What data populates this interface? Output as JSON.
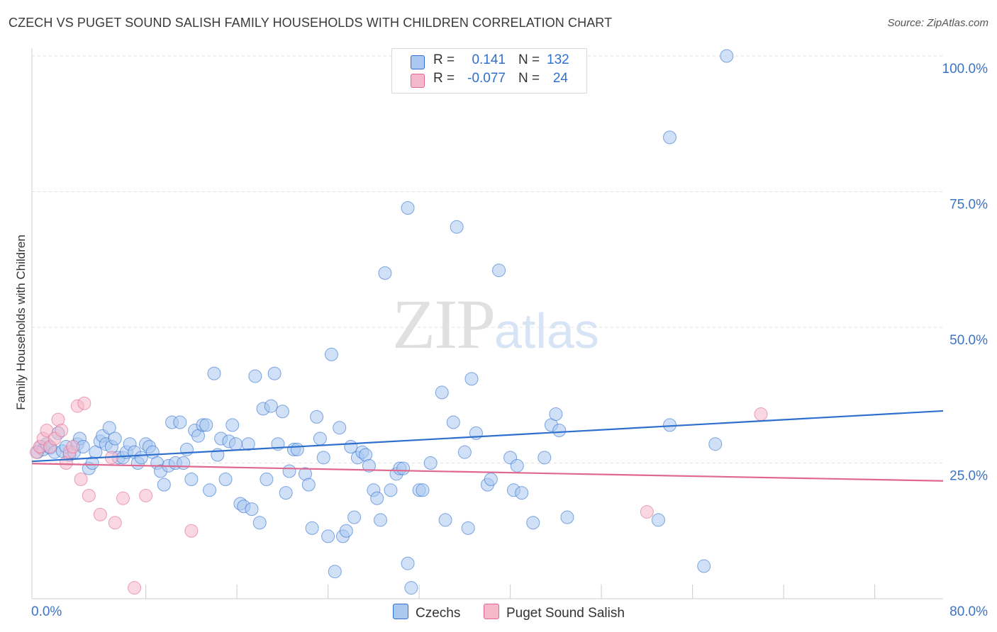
{
  "header": {
    "title": "CZECH VS PUGET SOUND SALISH FAMILY HOUSEHOLDS WITH CHILDREN CORRELATION CHART",
    "source": "Source: ZipAtlas.com"
  },
  "watermark": {
    "zip": "ZIP",
    "atlas": "atlas"
  },
  "legend": {
    "rows": [
      {
        "r_label": "R =",
        "r_value": "0.141",
        "n_label": "N =",
        "n_value": "132",
        "color": "#aac8f0"
      },
      {
        "r_label": "R =",
        "r_value": "-0.077",
        "n_label": "N =",
        "n_value": "24",
        "color": "#f5b8ca"
      }
    ]
  },
  "bottom_legend": [
    {
      "label": "Czechs",
      "color": "#aac8f0"
    },
    {
      "label": "Puget Sound Salish",
      "color": "#f5b8ca"
    }
  ],
  "chart_data": {
    "type": "scatter",
    "title": "CZECH VS PUGET SOUND SALISH FAMILY HOUSEHOLDS WITH CHILDREN CORRELATION CHART",
    "xlabel": "",
    "ylabel": "Family Households with Children",
    "xlim": [
      0,
      80
    ],
    "ylim": [
      0,
      100
    ],
    "x_tick_labels": [
      "0.0%",
      "80.0%"
    ],
    "y_tick_labels": [
      "25.0%",
      "50.0%",
      "75.0%",
      "100.0%"
    ],
    "y_ticks": [
      25,
      50,
      75,
      100
    ],
    "colors": {
      "czechs": "#2f6fce",
      "czechs_fill": "#aac8f0",
      "salish": "#e0688f",
      "salish_fill": "#f5b8ca",
      "tick_label": "#3a74c9",
      "grid": "#e2e2e2"
    },
    "series": [
      {
        "name": "Czechs",
        "trend": [
          [
            0,
            25.3
          ],
          [
            80,
            34.6
          ]
        ],
        "points": [
          [
            0.5,
            27
          ],
          [
            0.8,
            28
          ],
          [
            1.0,
            27.5
          ],
          [
            1.3,
            28.5
          ],
          [
            1.6,
            27.8
          ],
          [
            2.0,
            27
          ],
          [
            2.3,
            30.5
          ],
          [
            2.7,
            27.2
          ],
          [
            3.0,
            28
          ],
          [
            3.3,
            26.5
          ],
          [
            3.7,
            27
          ],
          [
            4.0,
            28.5
          ],
          [
            4.2,
            29.5
          ],
          [
            4.5,
            28
          ],
          [
            5.0,
            24
          ],
          [
            5.3,
            25
          ],
          [
            5.6,
            27
          ],
          [
            6.0,
            29
          ],
          [
            6.2,
            30
          ],
          [
            6.5,
            28.5
          ],
          [
            6.8,
            31.5
          ],
          [
            7.0,
            28
          ],
          [
            7.3,
            29.5
          ],
          [
            7.6,
            26
          ],
          [
            8.0,
            26
          ],
          [
            8.3,
            27
          ],
          [
            8.6,
            28.5
          ],
          [
            9.0,
            27
          ],
          [
            9.3,
            25
          ],
          [
            9.6,
            26
          ],
          [
            10.0,
            28.5
          ],
          [
            10.3,
            28
          ],
          [
            10.6,
            27
          ],
          [
            11.0,
            25
          ],
          [
            11.3,
            23.5
          ],
          [
            11.6,
            21
          ],
          [
            12.0,
            24.5
          ],
          [
            12.3,
            32.5
          ],
          [
            12.6,
            25
          ],
          [
            13.0,
            32.5
          ],
          [
            13.3,
            25
          ],
          [
            13.6,
            27.5
          ],
          [
            14.0,
            22
          ],
          [
            14.3,
            31
          ],
          [
            14.6,
            30
          ],
          [
            15.0,
            32
          ],
          [
            15.3,
            32
          ],
          [
            15.6,
            20
          ],
          [
            16.0,
            41.5
          ],
          [
            16.3,
            26.5
          ],
          [
            16.6,
            29.5
          ],
          [
            17.0,
            22
          ],
          [
            17.3,
            29
          ],
          [
            17.6,
            32
          ],
          [
            17.9,
            28.5
          ],
          [
            18.3,
            17.5
          ],
          [
            18.6,
            17
          ],
          [
            19.0,
            28.5
          ],
          [
            19.3,
            16.5
          ],
          [
            19.6,
            41
          ],
          [
            20.0,
            14
          ],
          [
            20.3,
            35
          ],
          [
            20.6,
            22
          ],
          [
            21.0,
            35.5
          ],
          [
            21.3,
            41.5
          ],
          [
            21.6,
            28.5
          ],
          [
            22.0,
            34.5
          ],
          [
            22.3,
            19.5
          ],
          [
            22.6,
            23.5
          ],
          [
            23.0,
            27.5
          ],
          [
            23.3,
            27.5
          ],
          [
            24.0,
            23
          ],
          [
            24.3,
            21
          ],
          [
            24.6,
            13
          ],
          [
            25.0,
            33.5
          ],
          [
            25.3,
            29.5
          ],
          [
            25.6,
            26
          ],
          [
            26.0,
            11.5
          ],
          [
            26.3,
            45
          ],
          [
            26.6,
            5
          ],
          [
            27.0,
            31.5
          ],
          [
            27.3,
            11.5
          ],
          [
            27.6,
            12.5
          ],
          [
            28.0,
            28
          ],
          [
            28.3,
            15
          ],
          [
            28.6,
            26
          ],
          [
            29.0,
            27
          ],
          [
            29.3,
            26.5
          ],
          [
            29.6,
            24.5
          ],
          [
            30.0,
            20
          ],
          [
            30.3,
            18.5
          ],
          [
            30.6,
            14.5
          ],
          [
            31.0,
            60
          ],
          [
            31.5,
            20
          ],
          [
            32.0,
            23
          ],
          [
            32.3,
            24
          ],
          [
            32.6,
            24
          ],
          [
            33.0,
            6.5
          ],
          [
            33.3,
            2
          ],
          [
            33.0,
            72
          ],
          [
            34.0,
            20
          ],
          [
            34.3,
            20
          ],
          [
            35.0,
            25
          ],
          [
            36.0,
            38
          ],
          [
            36.3,
            14.5
          ],
          [
            37.0,
            32.5
          ],
          [
            37.3,
            68.5
          ],
          [
            38.0,
            27
          ],
          [
            38.3,
            13
          ],
          [
            38.6,
            40.5
          ],
          [
            39.0,
            30.5
          ],
          [
            40.0,
            21
          ],
          [
            40.3,
            22
          ],
          [
            41.0,
            60.5
          ],
          [
            42.0,
            26
          ],
          [
            42.3,
            20
          ],
          [
            42.6,
            24.5
          ],
          [
            43.0,
            19.5
          ],
          [
            44.0,
            14
          ],
          [
            45.0,
            26
          ],
          [
            45.6,
            32
          ],
          [
            46.0,
            34
          ],
          [
            46.3,
            31
          ],
          [
            47.0,
            15
          ],
          [
            56.0,
            85
          ],
          [
            55.0,
            14.5
          ],
          [
            56.0,
            32
          ],
          [
            59.0,
            6
          ],
          [
            60.0,
            28.5
          ],
          [
            61.0,
            100
          ]
        ]
      },
      {
        "name": "Puget Sound Salish",
        "trend": [
          [
            0,
            24.9
          ],
          [
            80,
            21.7
          ]
        ],
        "points": [
          [
            0.4,
            27
          ],
          [
            0.7,
            28
          ],
          [
            1.0,
            29.5
          ],
          [
            1.3,
            31
          ],
          [
            1.6,
            28
          ],
          [
            2.0,
            29.5
          ],
          [
            2.3,
            33
          ],
          [
            2.6,
            31
          ],
          [
            3.0,
            25
          ],
          [
            3.3,
            27
          ],
          [
            3.6,
            28
          ],
          [
            4.0,
            35.5
          ],
          [
            4.3,
            22
          ],
          [
            4.6,
            36
          ],
          [
            5.0,
            19
          ],
          [
            6.0,
            15.5
          ],
          [
            7.0,
            26
          ],
          [
            7.3,
            14
          ],
          [
            8.0,
            18.5
          ],
          [
            9.0,
            2
          ],
          [
            10.0,
            19
          ],
          [
            14.0,
            12.5
          ],
          [
            54.0,
            16
          ],
          [
            64.0,
            34
          ]
        ]
      }
    ]
  }
}
